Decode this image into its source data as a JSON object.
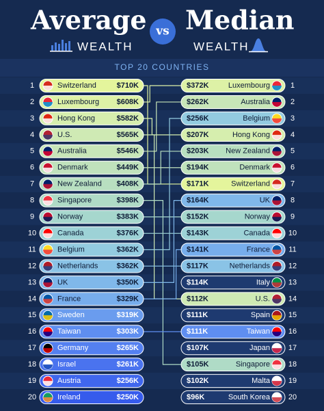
{
  "header": {
    "title_left": "Average",
    "subtitle_left": "WEALTH",
    "vs": "vs",
    "title_right": "Median",
    "subtitle_right": "WEALTH",
    "band": "TOP 20 COUNTRIES"
  },
  "unmatched_color": "#1e3a70",
  "average": [
    {
      "rank": 1,
      "country": "Switzerland",
      "value": "$710K",
      "color": "#e4f59c",
      "flag": [
        "#d52b1e",
        "#ffffff"
      ]
    },
    {
      "rank": 2,
      "country": "Luxembourg",
      "value": "$608K",
      "color": "#ddf1a6",
      "flag": [
        "#ed2939",
        "#00a1de"
      ]
    },
    {
      "rank": 3,
      "country": "Hong Kong",
      "value": "$582K",
      "color": "#d6eeae",
      "flag": [
        "#de2910",
        "#ffffff"
      ]
    },
    {
      "rank": 4,
      "country": "U.S.",
      "value": "$565K",
      "color": "#cfeab4",
      "flag": [
        "#b22234",
        "#3c3b6e"
      ]
    },
    {
      "rank": 5,
      "country": "Australia",
      "value": "$546K",
      "color": "#c8e6b8",
      "flag": [
        "#012169",
        "#e4002b"
      ]
    },
    {
      "rank": 6,
      "country": "Denmark",
      "value": "$449K",
      "color": "#c0e2bc",
      "flag": [
        "#c8102e",
        "#ffffff"
      ]
    },
    {
      "rank": 7,
      "country": "New Zealand",
      "value": "$408K",
      "color": "#b8dfc0",
      "flag": [
        "#012169",
        "#c8102e"
      ]
    },
    {
      "rank": 8,
      "country": "Singapore",
      "value": "$398K",
      "color": "#afdbc6",
      "flag": [
        "#ef3340",
        "#ffffff"
      ]
    },
    {
      "rank": 9,
      "country": "Norway",
      "value": "$383K",
      "color": "#a6d7cd",
      "flag": [
        "#ba0c2f",
        "#00205b"
      ]
    },
    {
      "rank": 10,
      "country": "Canada",
      "value": "$376K",
      "color": "#9dd2d6",
      "flag": [
        "#ff0000",
        "#ffffff"
      ]
    },
    {
      "rank": 11,
      "country": "Belgium",
      "value": "$362K",
      "color": "#93cbe0",
      "flag": [
        "#fdda24",
        "#ef3340"
      ]
    },
    {
      "rank": 12,
      "country": "Netherlands",
      "value": "$362K",
      "color": "#8ac3e6",
      "flag": [
        "#ae1c28",
        "#21468b"
      ]
    },
    {
      "rank": 13,
      "country": "UK",
      "value": "$350K",
      "color": "#80b8ea",
      "flag": [
        "#012169",
        "#c8102e"
      ]
    },
    {
      "rank": 14,
      "country": "France",
      "value": "$329K",
      "color": "#77adec",
      "flag": [
        "#0055a4",
        "#ef4135"
      ]
    },
    {
      "rank": 15,
      "country": "Sweden",
      "value": "$319K",
      "color": "#6a9cee",
      "flag": [
        "#006aa7",
        "#fecc00"
      ]
    },
    {
      "rank": 16,
      "country": "Taiwan",
      "value": "$303K",
      "color": "#5f8ef0",
      "flag": [
        "#fe0000",
        "#000095"
      ]
    },
    {
      "rank": 17,
      "country": "Germany",
      "value": "$265K",
      "color": "#5480f0",
      "flag": [
        "#000000",
        "#dd0000"
      ]
    },
    {
      "rank": 18,
      "country": "Israel",
      "value": "$261K",
      "color": "#4a73ef",
      "flag": [
        "#ffffff",
        "#0038b8"
      ]
    },
    {
      "rank": 19,
      "country": "Austria",
      "value": "$256K",
      "color": "#4067ee",
      "flag": [
        "#ed2939",
        "#ffffff"
      ]
    },
    {
      "rank": 20,
      "country": "Ireland",
      "value": "$250K",
      "color": "#365bec",
      "flag": [
        "#169b62",
        "#ff883e"
      ]
    }
  ],
  "median": [
    {
      "rank": 1,
      "country": "Luxembourg",
      "value": "$372K",
      "flag": [
        "#ed2939",
        "#00a1de"
      ]
    },
    {
      "rank": 2,
      "country": "Australia",
      "value": "$262K",
      "flag": [
        "#012169",
        "#e4002b"
      ]
    },
    {
      "rank": 3,
      "country": "Belgium",
      "value": "$256K",
      "flag": [
        "#fdda24",
        "#ef3340"
      ]
    },
    {
      "rank": 4,
      "country": "Hong Kong",
      "value": "$207K",
      "flag": [
        "#de2910",
        "#ffffff"
      ]
    },
    {
      "rank": 5,
      "country": "New Zealand",
      "value": "$203K",
      "flag": [
        "#012169",
        "#c8102e"
      ]
    },
    {
      "rank": 6,
      "country": "Denmark",
      "value": "$194K",
      "flag": [
        "#c8102e",
        "#ffffff"
      ]
    },
    {
      "rank": 7,
      "country": "Switzerland",
      "value": "$171K",
      "flag": [
        "#d52b1e",
        "#ffffff"
      ]
    },
    {
      "rank": 8,
      "country": "UK",
      "value": "$164K",
      "flag": [
        "#012169",
        "#c8102e"
      ]
    },
    {
      "rank": 9,
      "country": "Norway",
      "value": "$152K",
      "flag": [
        "#ba0c2f",
        "#00205b"
      ]
    },
    {
      "rank": 10,
      "country": "Canada",
      "value": "$143K",
      "flag": [
        "#ff0000",
        "#ffffff"
      ]
    },
    {
      "rank": 11,
      "country": "France",
      "value": "$141K",
      "flag": [
        "#0055a4",
        "#ef4135"
      ]
    },
    {
      "rank": 12,
      "country": "Netherlands",
      "value": "$117K",
      "flag": [
        "#ae1c28",
        "#21468b"
      ]
    },
    {
      "rank": 13,
      "country": "Italy",
      "value": "$114K",
      "flag": [
        "#009246",
        "#ce2b37"
      ]
    },
    {
      "rank": 14,
      "country": "U.S.",
      "value": "$112K",
      "flag": [
        "#b22234",
        "#3c3b6e"
      ]
    },
    {
      "rank": 15,
      "country": "Spain",
      "value": "$111K",
      "flag": [
        "#aa151b",
        "#f1bf00"
      ]
    },
    {
      "rank": 16,
      "country": "Taiwan",
      "value": "$111K",
      "flag": [
        "#fe0000",
        "#000095"
      ]
    },
    {
      "rank": 17,
      "country": "Japan",
      "value": "$107K",
      "flag": [
        "#ffffff",
        "#bc002d"
      ]
    },
    {
      "rank": 18,
      "country": "Singapore",
      "value": "$105K",
      "flag": [
        "#ef3340",
        "#ffffff"
      ]
    },
    {
      "rank": 19,
      "country": "Malta",
      "value": "$102K",
      "flag": [
        "#ffffff",
        "#cf142b"
      ]
    },
    {
      "rank": 20,
      "country": "South Korea",
      "value": "$96K",
      "flag": [
        "#ffffff",
        "#cd2e3a"
      ]
    }
  ]
}
